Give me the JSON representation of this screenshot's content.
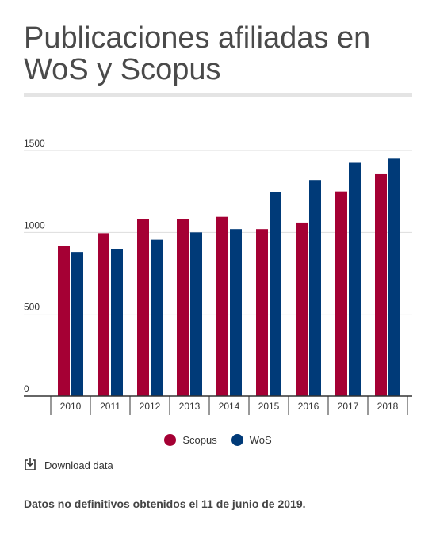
{
  "title": "Publicaciones afiliadas en WoS y Scopus",
  "download_label": "Download data",
  "note": "Datos no definitivos obtenidos el 11 de junio de 2019.",
  "icons": {
    "download": "download-icon"
  },
  "chart_data": {
    "type": "bar",
    "title": "Publicaciones afiliadas en WoS y Scopus",
    "xlabel": "",
    "ylabel": "",
    "categories": [
      "2010",
      "2011",
      "2012",
      "2013",
      "2014",
      "2015",
      "2016",
      "2017",
      "2018"
    ],
    "series": [
      {
        "name": "Scopus",
        "color": "#a50034",
        "values": [
          915,
          995,
          1080,
          1080,
          1095,
          1020,
          1060,
          1250,
          1355
        ]
      },
      {
        "name": "WoS",
        "color": "#003a78",
        "values": [
          880,
          900,
          955,
          1000,
          1020,
          1245,
          1320,
          1425,
          1450
        ]
      }
    ],
    "ylim": [
      0,
      1500
    ],
    "yticks": [
      "0",
      "500",
      "1000",
      "1500"
    ],
    "grid": true,
    "legend": "bottom"
  }
}
